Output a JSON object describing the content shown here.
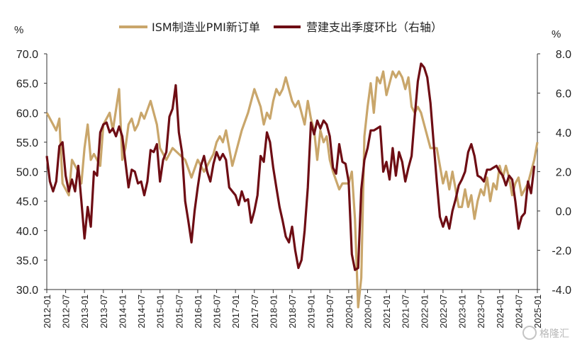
{
  "chart_data": {
    "type": "line",
    "left_unit": "%",
    "right_unit": "%",
    "ylim_left": [
      30,
      70
    ],
    "ylim_right": [
      -4,
      8
    ],
    "yticks_left": [
      "70.0",
      "65.0",
      "60.0",
      "55.0",
      "50.0",
      "45.0",
      "40.0",
      "35.0",
      "30.0"
    ],
    "yticks_right": [
      "8.0",
      "6.0",
      "4.0",
      "2.0",
      "0.0",
      "-2.0",
      "-4.0"
    ],
    "x_start": "2012-01",
    "x_end": "2025-01",
    "xticks": [
      "2012-01",
      "2012-07",
      "2013-01",
      "2013-07",
      "2014-01",
      "2014-07",
      "2015-01",
      "2015-07",
      "2016-01",
      "2016-07",
      "2017-01",
      "2017-07",
      "2018-01",
      "2018-07",
      "2019-01",
      "2019-07",
      "2020-01",
      "2020-07",
      "2021-01",
      "2021-07",
      "2022-01",
      "2022-07",
      "2023-01",
      "2023-07",
      "2024-01",
      "2024-07",
      "2025-01"
    ],
    "series": [
      {
        "name": "ISM制造业PMI新订单",
        "axis": "left",
        "color": "#c9a66b",
        "points": [
          [
            "2012-01",
            60
          ],
          [
            "2012-03",
            58
          ],
          [
            "2012-04",
            57
          ],
          [
            "2012-05",
            59
          ],
          [
            "2012-06",
            48
          ],
          [
            "2012-08",
            46
          ],
          [
            "2012-09",
            52
          ],
          [
            "2012-11",
            50
          ],
          [
            "2012-12",
            48
          ],
          [
            "2013-01",
            54
          ],
          [
            "2013-02",
            58
          ],
          [
            "2013-03",
            52
          ],
          [
            "2013-04",
            53
          ],
          [
            "2013-06",
            51
          ],
          [
            "2013-07",
            58
          ],
          [
            "2013-09",
            60
          ],
          [
            "2013-10",
            57
          ],
          [
            "2013-12",
            64
          ],
          [
            "2014-01",
            52
          ],
          [
            "2014-02",
            54
          ],
          [
            "2014-03",
            58
          ],
          [
            "2014-04",
            59
          ],
          [
            "2014-05",
            57
          ],
          [
            "2014-06",
            58
          ],
          [
            "2014-07",
            60
          ],
          [
            "2014-08",
            59
          ],
          [
            "2014-10",
            62
          ],
          [
            "2014-12",
            58
          ],
          [
            "2015-01",
            54
          ],
          [
            "2015-03",
            52
          ],
          [
            "2015-05",
            54
          ],
          [
            "2015-07",
            53
          ],
          [
            "2015-09",
            52
          ],
          [
            "2015-11",
            49
          ],
          [
            "2016-01",
            52
          ],
          [
            "2016-03",
            50
          ],
          [
            "2016-05",
            52
          ],
          [
            "2016-06",
            53
          ],
          [
            "2016-07",
            55
          ],
          [
            "2016-08",
            56
          ],
          [
            "2016-09",
            55
          ],
          [
            "2016-10",
            57
          ],
          [
            "2016-11",
            54
          ],
          [
            "2016-12",
            51
          ],
          [
            "2017-01",
            53
          ],
          [
            "2017-03",
            57
          ],
          [
            "2017-05",
            60
          ],
          [
            "2017-07",
            64
          ],
          [
            "2017-09",
            61
          ],
          [
            "2017-10",
            58
          ],
          [
            "2017-11",
            60
          ],
          [
            "2017-12",
            59
          ],
          [
            "2018-01",
            62
          ],
          [
            "2018-02",
            64
          ],
          [
            "2018-03",
            63
          ],
          [
            "2018-04",
            64
          ],
          [
            "2018-05",
            66
          ],
          [
            "2018-07",
            62
          ],
          [
            "2018-08",
            61
          ],
          [
            "2018-09",
            62
          ],
          [
            "2018-11",
            58
          ],
          [
            "2018-12",
            62
          ],
          [
            "2019-01",
            59
          ],
          [
            "2019-02",
            57
          ],
          [
            "2019-03",
            52
          ],
          [
            "2019-04",
            57
          ],
          [
            "2019-05",
            55
          ],
          [
            "2019-06",
            56
          ],
          [
            "2019-07",
            52
          ],
          [
            "2019-08",
            50
          ],
          [
            "2019-10",
            47
          ],
          [
            "2019-11",
            48
          ],
          [
            "2020-01",
            48
          ],
          [
            "2020-02",
            50
          ],
          [
            "2020-03",
            42
          ],
          [
            "2020-04",
            27
          ],
          [
            "2020-05",
            32
          ],
          [
            "2020-06",
            56
          ],
          [
            "2020-07",
            61
          ],
          [
            "2020-08",
            65
          ],
          [
            "2020-09",
            60
          ],
          [
            "2020-10",
            66
          ],
          [
            "2020-11",
            65
          ],
          [
            "2020-12",
            67
          ],
          [
            "2021-01",
            63
          ],
          [
            "2021-02",
            65
          ],
          [
            "2021-03",
            67
          ],
          [
            "2021-04",
            66
          ],
          [
            "2021-05",
            67
          ],
          [
            "2021-06",
            66
          ],
          [
            "2021-07",
            64
          ],
          [
            "2021-08",
            66
          ],
          [
            "2021-09",
            61
          ],
          [
            "2021-10",
            60
          ],
          [
            "2021-11",
            61
          ],
          [
            "2021-12",
            60
          ],
          [
            "2022-01",
            58
          ],
          [
            "2022-03",
            54
          ],
          [
            "2022-05",
            54
          ],
          [
            "2022-07",
            48
          ],
          [
            "2022-08",
            50
          ],
          [
            "2022-09",
            47
          ],
          [
            "2022-10",
            50
          ],
          [
            "2022-11",
            47
          ],
          [
            "2022-12",
            44
          ],
          [
            "2023-01",
            44
          ],
          [
            "2023-02",
            47
          ],
          [
            "2023-03",
            44
          ],
          [
            "2023-04",
            46
          ],
          [
            "2023-05",
            42
          ],
          [
            "2023-06",
            45
          ],
          [
            "2023-07",
            47
          ],
          [
            "2023-08",
            46
          ],
          [
            "2023-09",
            49
          ],
          [
            "2023-10",
            45
          ],
          [
            "2023-11",
            48
          ],
          [
            "2023-12",
            47
          ],
          [
            "2024-01",
            51
          ],
          [
            "2024-02",
            49
          ],
          [
            "2024-03",
            51
          ],
          [
            "2024-04",
            49
          ],
          [
            "2024-05",
            46
          ],
          [
            "2024-06",
            48
          ],
          [
            "2024-07",
            49
          ],
          [
            "2024-08",
            46
          ],
          [
            "2024-09",
            47
          ],
          [
            "2024-10",
            48
          ],
          [
            "2024-11",
            50
          ],
          [
            "2024-12",
            52
          ],
          [
            "2025-01",
            55
          ]
        ]
      },
      {
        "name": "营建支出季度环比（右轴）",
        "axis": "right",
        "color": "#6e0d14",
        "points": [
          [
            "2012-01",
            2.8
          ],
          [
            "2012-02",
            1.5
          ],
          [
            "2012-03",
            1
          ],
          [
            "2012-04",
            1.5
          ],
          [
            "2012-05",
            3.3
          ],
          [
            "2012-06",
            3.5
          ],
          [
            "2012-07",
            1.8
          ],
          [
            "2012-08",
            1
          ],
          [
            "2012-09",
            1.6
          ],
          [
            "2012-10",
            1
          ],
          [
            "2012-11",
            2.3
          ],
          [
            "2012-12",
            0.5
          ],
          [
            "2013-01",
            -1.4
          ],
          [
            "2013-02",
            0.2
          ],
          [
            "2013-03",
            -0.8
          ],
          [
            "2013-04",
            2
          ],
          [
            "2013-05",
            1.8
          ],
          [
            "2013-06",
            4
          ],
          [
            "2013-07",
            4.4
          ],
          [
            "2013-08",
            4.5
          ],
          [
            "2013-09",
            4
          ],
          [
            "2013-10",
            4.2
          ],
          [
            "2013-11",
            3.8
          ],
          [
            "2013-12",
            4.3
          ],
          [
            "2014-01",
            3.8
          ],
          [
            "2014-02",
            2.5
          ],
          [
            "2014-03",
            1.2
          ],
          [
            "2014-04",
            2.1
          ],
          [
            "2014-05",
            2
          ],
          [
            "2014-06",
            1.4
          ],
          [
            "2014-07",
            1.5
          ],
          [
            "2014-08",
            0.8
          ],
          [
            "2014-09",
            1.5
          ],
          [
            "2014-10",
            3.1
          ],
          [
            "2014-11",
            3
          ],
          [
            "2014-12",
            3.4
          ],
          [
            "2015-01",
            1.5
          ],
          [
            "2015-02",
            2.6
          ],
          [
            "2015-03",
            3
          ],
          [
            "2015-04",
            4.8
          ],
          [
            "2015-05",
            5.2
          ],
          [
            "2015-06",
            6.4
          ],
          [
            "2015-07",
            4
          ],
          [
            "2015-08",
            3
          ],
          [
            "2015-09",
            0.5
          ],
          [
            "2015-10",
            -0.5
          ],
          [
            "2015-11",
            -1.6
          ],
          [
            "2015-12",
            0
          ],
          [
            "2016-01",
            1.2
          ],
          [
            "2016-02",
            2.3
          ],
          [
            "2016-03",
            2.8
          ],
          [
            "2016-04",
            2
          ],
          [
            "2016-05",
            1.5
          ],
          [
            "2016-06",
            2.4
          ],
          [
            "2016-07",
            3
          ],
          [
            "2016-08",
            2.6
          ],
          [
            "2016-09",
            2.9
          ],
          [
            "2016-10",
            2.6
          ],
          [
            "2016-11",
            1.2
          ],
          [
            "2016-12",
            1
          ],
          [
            "2017-01",
            0.8
          ],
          [
            "2017-02",
            0.3
          ],
          [
            "2017-03",
            1
          ],
          [
            "2017-04",
            0.5
          ],
          [
            "2017-05",
            0.6
          ],
          [
            "2017-06",
            -0.6
          ],
          [
            "2017-07",
            0
          ],
          [
            "2017-08",
            0.8
          ],
          [
            "2017-09",
            2.8
          ],
          [
            "2017-10",
            2.5
          ],
          [
            "2017-11",
            4
          ],
          [
            "2017-12",
            3.5
          ],
          [
            "2018-01",
            2.2
          ],
          [
            "2018-02",
            1.2
          ],
          [
            "2018-03",
            0.2
          ],
          [
            "2018-04",
            -0.5
          ],
          [
            "2018-05",
            -1.3
          ],
          [
            "2018-06",
            -1.6
          ],
          [
            "2018-07",
            -0.8
          ],
          [
            "2018-08",
            -2
          ],
          [
            "2018-09",
            -2.9
          ],
          [
            "2018-10",
            -2.5
          ],
          [
            "2018-11",
            -1
          ],
          [
            "2018-12",
            1.2
          ],
          [
            "2019-01",
            4.5
          ],
          [
            "2019-02",
            3.9
          ],
          [
            "2019-03",
            4.6
          ],
          [
            "2019-04",
            4.2
          ],
          [
            "2019-05",
            4.6
          ],
          [
            "2019-06",
            4.4
          ],
          [
            "2019-07",
            3.8
          ],
          [
            "2019-08",
            2.2
          ],
          [
            "2019-09",
            1.9
          ],
          [
            "2019-10",
            3.4
          ],
          [
            "2019-11",
            2.5
          ],
          [
            "2019-12",
            2.4
          ],
          [
            "2020-01",
            1.5
          ],
          [
            "2020-02",
            -2.2
          ],
          [
            "2020-03",
            -3
          ],
          [
            "2020-04",
            -2.9
          ],
          [
            "2020-05",
            1.1
          ],
          [
            "2020-06",
            2.6
          ],
          [
            "2020-07",
            3.2
          ],
          [
            "2020-08",
            4.1
          ],
          [
            "2020-09",
            4.1
          ],
          [
            "2020-10",
            4.2
          ],
          [
            "2020-11",
            4.3
          ],
          [
            "2020-12",
            2
          ],
          [
            "2021-01",
            2.5
          ],
          [
            "2021-02",
            1.6
          ],
          [
            "2021-03",
            3.2
          ],
          [
            "2021-04",
            1.8
          ],
          [
            "2021-05",
            3
          ],
          [
            "2021-06",
            2.5
          ],
          [
            "2021-07",
            1.5
          ],
          [
            "2021-08",
            2.2
          ],
          [
            "2021-09",
            2.8
          ],
          [
            "2021-10",
            4.8
          ],
          [
            "2021-11",
            6.6
          ],
          [
            "2021-12",
            7.5
          ],
          [
            "2022-01",
            7.3
          ],
          [
            "2022-02",
            6.8
          ],
          [
            "2022-03",
            5.5
          ],
          [
            "2022-04",
            3.5
          ],
          [
            "2022-05",
            1.5
          ],
          [
            "2022-06",
            -0.3
          ],
          [
            "2022-07",
            -0.8
          ],
          [
            "2022-08",
            -0.3
          ],
          [
            "2022-09",
            -0.9
          ],
          [
            "2022-10",
            0
          ],
          [
            "2022-11",
            0.6
          ],
          [
            "2022-12",
            1.3
          ],
          [
            "2023-01",
            1.6
          ],
          [
            "2023-02",
            2
          ],
          [
            "2023-03",
            3
          ],
          [
            "2023-04",
            3.4
          ],
          [
            "2023-05",
            2.8
          ],
          [
            "2023-06",
            1.8
          ],
          [
            "2023-07",
            1.7
          ],
          [
            "2023-08",
            1.5
          ],
          [
            "2023-09",
            2.1
          ],
          [
            "2023-10",
            2.1
          ],
          [
            "2023-11",
            2.2
          ],
          [
            "2023-12",
            2.3
          ],
          [
            "2024-01",
            2
          ],
          [
            "2024-02",
            1.8
          ],
          [
            "2024-03",
            1.3
          ],
          [
            "2024-04",
            1.8
          ],
          [
            "2024-05",
            1.6
          ],
          [
            "2024-06",
            0.5
          ],
          [
            "2024-07",
            -0.9
          ],
          [
            "2024-08",
            -0.3
          ],
          [
            "2024-09",
            -0.1
          ],
          [
            "2024-10",
            1.5
          ],
          [
            "2024-11",
            0.9
          ],
          [
            "2024-12",
            2.3
          ]
        ]
      }
    ]
  },
  "watermark": "格隆汇"
}
